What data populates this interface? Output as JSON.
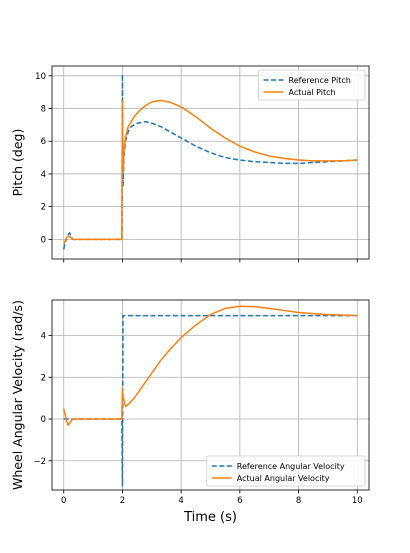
{
  "colors": {
    "reference": "#1f77b4",
    "actual": "#ff7f0e",
    "grid": "#b0b0b0",
    "axes": "#000000"
  },
  "chart_data": [
    {
      "type": "line",
      "xlabel": "",
      "ylabel": "Pitch (deg)",
      "xlim": [
        -0.4,
        10.4
      ],
      "ylim": [
        -1.2,
        10.6
      ],
      "xticks": [
        0,
        2,
        4,
        6,
        8,
        10
      ],
      "xtick_labels": [
        "",
        "",
        "",
        "",
        "",
        ""
      ],
      "yticks": [
        0,
        2,
        4,
        6,
        8,
        10
      ],
      "ytick_labels": [
        "0",
        "2",
        "4",
        "6",
        "8",
        "10"
      ],
      "grid": true,
      "legend": "upper right",
      "series": [
        {
          "name": "Reference Pitch",
          "style": "dashed",
          "color": "#1f77b4",
          "x": [
            0,
            0.05,
            0.1,
            0.15,
            0.2,
            0.3,
            0.5,
            1,
            1.5,
            1.98,
            2.0,
            2.02,
            2.05,
            2.1,
            2.2,
            2.3,
            2.5,
            2.8,
            3.0,
            3.3,
            3.5,
            4,
            4.5,
            5,
            5.5,
            6,
            6.5,
            7,
            7.5,
            8,
            8.5,
            9,
            9.5,
            10
          ],
          "y": [
            -0.6,
            -0.2,
            0.1,
            0.3,
            0.4,
            0.0,
            0.0,
            0.0,
            0.0,
            0.0,
            10.1,
            3.2,
            5.0,
            6.0,
            6.6,
            6.9,
            7.1,
            7.2,
            7.1,
            6.9,
            6.7,
            6.2,
            5.7,
            5.3,
            5.0,
            4.85,
            4.75,
            4.7,
            4.65,
            4.65,
            4.7,
            4.75,
            4.8,
            4.85
          ]
        },
        {
          "name": "Actual Pitch",
          "style": "solid",
          "color": "#ff7f0e",
          "x": [
            0,
            0.05,
            0.1,
            0.15,
            0.2,
            0.3,
            0.5,
            1,
            1.5,
            1.98,
            2.0,
            2.02,
            2.05,
            2.1,
            2.2,
            2.4,
            2.6,
            2.8,
            3.0,
            3.3,
            3.6,
            4,
            4.5,
            5,
            5.5,
            6,
            6.5,
            7,
            7.5,
            8,
            8.5,
            9,
            9.5,
            10
          ],
          "y": [
            -0.3,
            -0.1,
            0.1,
            0.2,
            0.2,
            0.0,
            0.0,
            0.0,
            0.0,
            0.0,
            8.5,
            4.2,
            5.4,
            6.2,
            6.9,
            7.5,
            7.9,
            8.2,
            8.4,
            8.5,
            8.4,
            8.1,
            7.5,
            6.8,
            6.2,
            5.7,
            5.35,
            5.1,
            4.95,
            4.85,
            4.8,
            4.8,
            4.8,
            4.85
          ]
        }
      ]
    },
    {
      "type": "line",
      "xlabel": "Time (s)",
      "ylabel": "Wheel Angular Velocity (rad/s)",
      "xlim": [
        -0.4,
        10.4
      ],
      "ylim": [
        -3.4,
        5.7
      ],
      "xticks": [
        0,
        2,
        4,
        6,
        8,
        10
      ],
      "xtick_labels": [
        "0",
        "2",
        "4",
        "6",
        "8",
        "10"
      ],
      "yticks": [
        -2,
        0,
        2,
        4
      ],
      "ytick_labels": [
        "−2",
        "0",
        "2",
        "4"
      ],
      "grid": true,
      "legend": "lower right",
      "series": [
        {
          "name": "Reference Angular Velocity",
          "style": "dashed",
          "color": "#1f77b4",
          "x": [
            0,
            1.98,
            2.0,
            2.02,
            10
          ],
          "y": [
            0.0,
            0.0,
            -3.2,
            4.95,
            4.95
          ]
        },
        {
          "name": "Actual Angular Velocity",
          "style": "solid",
          "color": "#ff7f0e",
          "x": [
            0,
            0.05,
            0.1,
            0.15,
            0.2,
            0.3,
            0.5,
            1,
            1.5,
            1.98,
            2.0,
            2.02,
            2.1,
            2.2,
            2.4,
            2.6,
            2.8,
            3.0,
            3.3,
            3.6,
            4.0,
            4.5,
            5.0,
            5.5,
            6.0,
            6.5,
            7.0,
            7.5,
            8.0,
            8.5,
            9.0,
            9.5,
            10
          ],
          "y": [
            0.5,
            0.2,
            -0.1,
            -0.3,
            -0.2,
            0.0,
            0.0,
            0.0,
            0.0,
            0.0,
            1.5,
            1.1,
            0.6,
            0.7,
            1.0,
            1.4,
            1.8,
            2.2,
            2.8,
            3.3,
            3.9,
            4.5,
            5.0,
            5.3,
            5.4,
            5.38,
            5.3,
            5.2,
            5.1,
            5.05,
            5.0,
            4.98,
            4.95
          ]
        }
      ]
    }
  ]
}
